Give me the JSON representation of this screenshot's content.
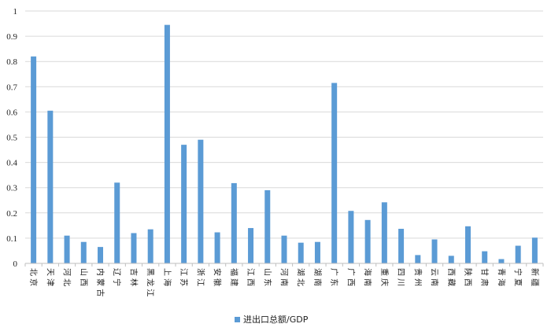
{
  "chart_data": {
    "type": "bar",
    "title": "",
    "xlabel": "",
    "ylabel": "",
    "ylim": [
      0,
      1
    ],
    "yticks": [
      "0",
      "0.1",
      "0.2",
      "0.3",
      "0.4",
      "0.5",
      "0.6",
      "0.7",
      "0.8",
      "0.9",
      "1"
    ],
    "grid": true,
    "legend_position": "bottom",
    "categories": [
      "北京",
      "天津",
      "河北",
      "山西",
      "内蒙古",
      "辽宁",
      "吉林",
      "黑龙江",
      "上海",
      "江苏",
      "浙江",
      "安徽",
      "福建",
      "江西",
      "山东",
      "河南",
      "湖北",
      "湖南",
      "广东",
      "广西",
      "海南",
      "重庆",
      "四川",
      "贵州",
      "云南",
      "西藏",
      "陕西",
      "甘肃",
      "青海",
      "宁夏",
      "新疆"
    ],
    "series": [
      {
        "name": "进出口总额/GDP",
        "color": "#5b9bd5",
        "values": [
          0.82,
          0.605,
          0.11,
          0.085,
          0.065,
          0.32,
          0.12,
          0.135,
          0.945,
          0.47,
          0.49,
          0.123,
          0.318,
          0.14,
          0.29,
          0.11,
          0.082,
          0.085,
          0.715,
          0.208,
          0.172,
          0.242,
          0.137,
          0.033,
          0.095,
          0.03,
          0.147,
          0.048,
          0.017,
          0.07,
          0.102
        ]
      }
    ]
  }
}
